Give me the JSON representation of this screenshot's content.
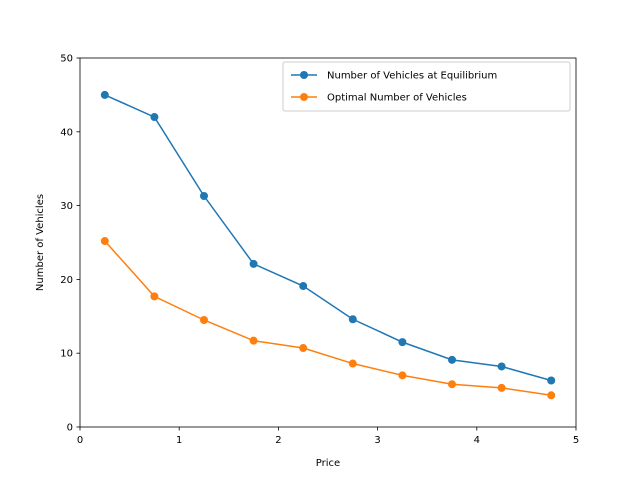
{
  "chart_data": {
    "type": "line",
    "title": "",
    "xlabel": "Price",
    "ylabel": "Number of Vehicles",
    "xlim": [
      0,
      5
    ],
    "ylim": [
      0,
      50
    ],
    "xticks": [
      "0",
      "1",
      "2",
      "3",
      "4",
      "5"
    ],
    "yticks": [
      "0",
      "10",
      "20",
      "30",
      "40",
      "50"
    ],
    "grid": false,
    "legend_position": "top-right",
    "x": [
      0.25,
      0.75,
      1.25,
      1.75,
      2.25,
      2.75,
      3.25,
      3.75,
      4.25,
      4.75
    ],
    "series": [
      {
        "name": "Number of Vehicles at Equilibrium",
        "color": "#1f77b4",
        "marker": "circle",
        "values": [
          45.0,
          42.0,
          31.3,
          22.1,
          19.1,
          14.6,
          11.5,
          9.1,
          8.2,
          6.3
        ]
      },
      {
        "name": "Optimal Number of Vehicles",
        "color": "#ff7f0e",
        "marker": "circle",
        "values": [
          25.2,
          17.7,
          14.5,
          11.7,
          10.7,
          8.6,
          7.0,
          5.8,
          5.3,
          4.3
        ]
      }
    ]
  }
}
